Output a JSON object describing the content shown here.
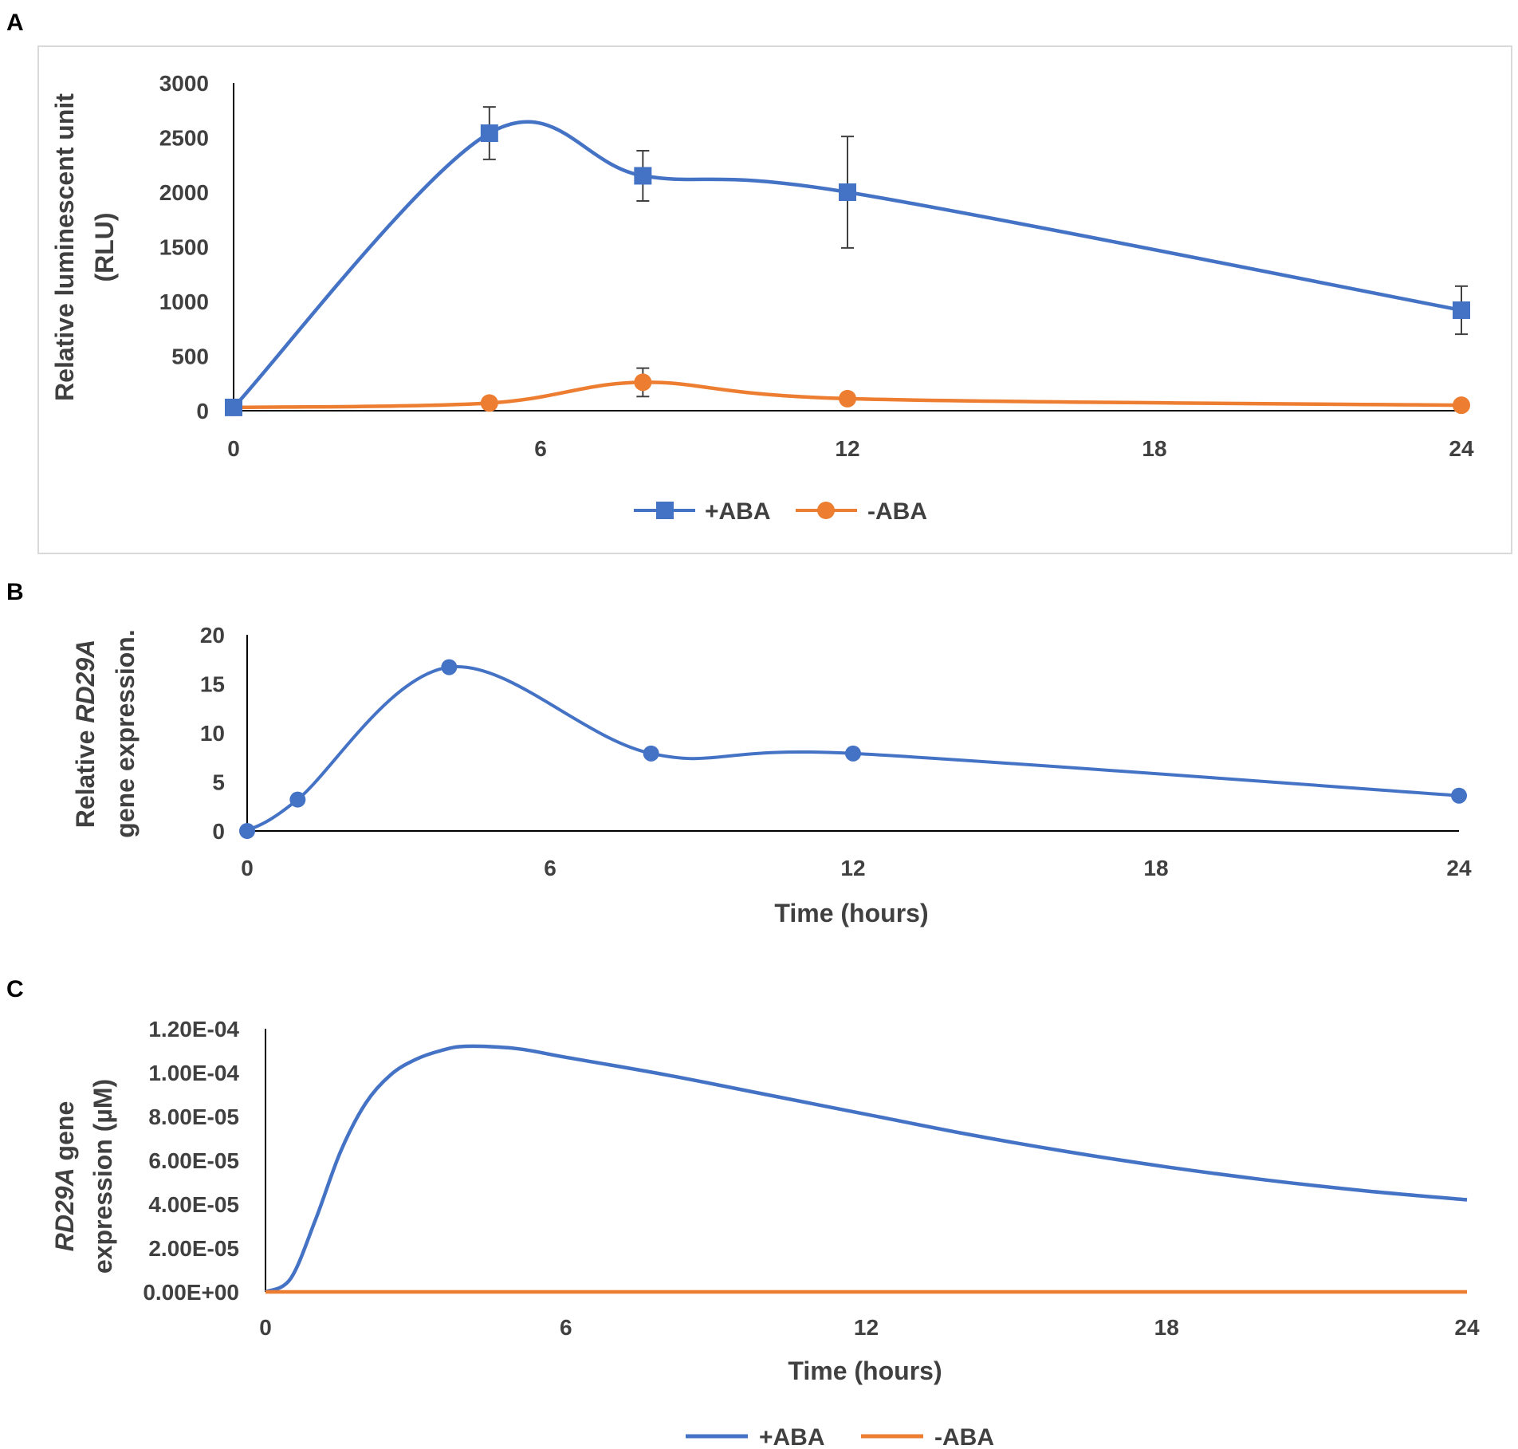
{
  "colors": {
    "aba_plus": "#4472C4",
    "aba_minus": "#ED7D31",
    "axis": "#000000",
    "error_bar": "#404040",
    "text": "#404040",
    "frame": "#D9D9D9"
  },
  "chart_data": [
    {
      "panel": "A",
      "type": "line",
      "title": "",
      "xlabel": "",
      "ylabel_line1": "Relative luminescent unit",
      "ylabel_line2": "(RLU)",
      "xlim": [
        0,
        24
      ],
      "ylim": [
        0,
        3000
      ],
      "x_ticks": [
        "0",
        "6",
        "12",
        "18",
        "24"
      ],
      "y_ticks": [
        "0",
        "500",
        "1000",
        "1500",
        "2000",
        "2500",
        "3000"
      ],
      "legend": "bottom",
      "series": [
        {
          "name": "+ABA",
          "color": "#4472C4",
          "marker": "square",
          "x": [
            0,
            5,
            8,
            12,
            24
          ],
          "values": [
            30,
            2540,
            2150,
            2000,
            920
          ],
          "errors": [
            0,
            240,
            230,
            510,
            220
          ]
        },
        {
          "name": "-ABA",
          "color": "#ED7D31",
          "marker": "circle",
          "x": [
            0,
            5,
            8,
            12,
            24
          ],
          "values": [
            30,
            70,
            260,
            110,
            50
          ],
          "errors": [
            0,
            0,
            130,
            0,
            0
          ]
        }
      ]
    },
    {
      "panel": "B",
      "type": "line",
      "title": "",
      "xlabel": "Time (hours)",
      "ylabel_line1_prefix": "Relative ",
      "ylabel_line1_italic": "RD29A",
      "ylabel_line2": "gene expression.",
      "xlim": [
        0,
        24
      ],
      "ylim": [
        0,
        20
      ],
      "x_ticks": [
        "0",
        "6",
        "12",
        "18",
        "24"
      ],
      "y_ticks": [
        "0",
        "5",
        "10",
        "15",
        "20"
      ],
      "legend": "none",
      "series": [
        {
          "name": "RD29A",
          "color": "#4472C4",
          "marker": "circle",
          "x": [
            0,
            1,
            4,
            8,
            12,
            24
          ],
          "values": [
            0,
            3.2,
            16.7,
            7.9,
            7.9,
            3.6
          ]
        }
      ]
    },
    {
      "panel": "C",
      "type": "line",
      "title": "",
      "xlabel": "Time (hours)",
      "ylabel_line1_italic": "RD29A",
      "ylabel_line1_suffix": " gene",
      "ylabel_line2": "expression (µM)",
      "xlim": [
        0,
        24
      ],
      "ylim": [
        0,
        0.00012
      ],
      "x_ticks": [
        "0",
        "6",
        "12",
        "18",
        "24"
      ],
      "y_ticks": [
        "0.00E+00",
        "2.00E-05",
        "4.00E-05",
        "6.00E-05",
        "8.00E-05",
        "1.00E-04",
        "1.20E-04"
      ],
      "legend": "bottom",
      "series": [
        {
          "name": "+ABA",
          "color": "#4472C4",
          "marker": "none",
          "x": [
            0,
            0.5,
            1,
            1.5,
            2,
            2.5,
            3,
            3.5,
            4,
            5,
            6,
            8,
            10,
            12,
            14,
            16,
            18,
            20,
            22,
            24
          ],
          "values": [
            0,
            6e-06,
            3.3e-05,
            6.4e-05,
            8.6e-05,
            9.9e-05,
            0.000106,
            0.00011,
            0.000112,
            0.000111,
            0.000107,
            9.9e-05,
            9e-05,
            8.1e-05,
            7.2e-05,
            6.4e-05,
            5.7e-05,
            5.1e-05,
            4.6e-05,
            4.2e-05
          ]
        },
        {
          "name": "-ABA",
          "color": "#ED7D31",
          "marker": "none",
          "x": [
            0,
            24
          ],
          "values": [
            0,
            0
          ]
        }
      ]
    }
  ]
}
